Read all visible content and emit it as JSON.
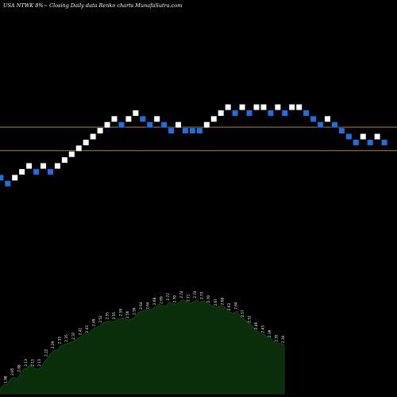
{
  "header": {
    "title": "USA NTWK 8%~  Closing Daily data  Renko  charts MunafaSutra.com"
  },
  "colors": {
    "background": "#000000",
    "up_brick": "#ffffff",
    "down_brick": "#1f6fe0",
    "support_line": "#b8860b",
    "volume_fill": "#0a2e0a",
    "volume_edge": "#1e5a1e"
  },
  "chart_data": [
    {
      "type": "renko",
      "bricks": [
        {
          "dir": "down",
          "level": 0
        },
        {
          "dir": "down",
          "level": -1
        },
        {
          "dir": "up",
          "level": 0
        },
        {
          "dir": "up",
          "level": 1
        },
        {
          "dir": "up",
          "level": 2
        },
        {
          "dir": "down",
          "level": 1
        },
        {
          "dir": "up",
          "level": 2
        },
        {
          "dir": "down",
          "level": 1
        },
        {
          "dir": "up",
          "level": 2
        },
        {
          "dir": "up",
          "level": 3
        },
        {
          "dir": "up",
          "level": 4
        },
        {
          "dir": "up",
          "level": 5
        },
        {
          "dir": "up",
          "level": 6
        },
        {
          "dir": "up",
          "level": 7
        },
        {
          "dir": "up",
          "level": 8
        },
        {
          "dir": "up",
          "level": 9
        },
        {
          "dir": "up",
          "level": 10
        },
        {
          "dir": "down",
          "level": 9
        },
        {
          "dir": "up",
          "level": 10
        },
        {
          "dir": "up",
          "level": 11
        },
        {
          "dir": "down",
          "level": 10
        },
        {
          "dir": "down",
          "level": 9
        },
        {
          "dir": "up",
          "level": 10
        },
        {
          "dir": "down",
          "level": 9
        },
        {
          "dir": "down",
          "level": 8
        },
        {
          "dir": "up",
          "level": 9
        },
        {
          "dir": "down",
          "level": 8
        },
        {
          "dir": "down",
          "level": 8
        },
        {
          "dir": "down",
          "level": 8
        },
        {
          "dir": "up",
          "level": 9
        },
        {
          "dir": "up",
          "level": 10
        },
        {
          "dir": "up",
          "level": 11
        },
        {
          "dir": "up",
          "level": 12
        },
        {
          "dir": "down",
          "level": 11
        },
        {
          "dir": "up",
          "level": 12
        },
        {
          "dir": "down",
          "level": 11
        },
        {
          "dir": "up",
          "level": 12
        },
        {
          "dir": "up",
          "level": 12
        },
        {
          "dir": "down",
          "level": 11
        },
        {
          "dir": "up",
          "level": 12
        },
        {
          "dir": "down",
          "level": 11
        },
        {
          "dir": "up",
          "level": 12
        },
        {
          "dir": "up",
          "level": 12
        },
        {
          "dir": "down",
          "level": 11
        },
        {
          "dir": "down",
          "level": 10
        },
        {
          "dir": "down",
          "level": 9
        },
        {
          "dir": "up",
          "level": 10
        },
        {
          "dir": "down",
          "level": 9
        },
        {
          "dir": "down",
          "level": 8
        },
        {
          "dir": "down",
          "level": 7
        },
        {
          "dir": "down",
          "level": 6
        },
        {
          "dir": "up",
          "level": 7
        },
        {
          "dir": "down",
          "level": 6
        },
        {
          "dir": "up",
          "level": 7
        },
        {
          "dir": "down",
          "level": 6
        }
      ],
      "horizontal_lines": [
        {
          "level": 8.6
        },
        {
          "level": 4.6
        }
      ]
    },
    {
      "type": "area",
      "values": [
        1.94,
        1.98,
        1.98,
        2.03,
        2.05,
        2.03,
        2.08,
        2.12,
        2.13,
        2.16,
        2.13,
        2.12,
        2.13,
        2.18,
        2.22,
        2.26,
        2.29,
        2.29,
        2.33,
        2.34,
        2.35,
        2.36,
        2.37,
        2.4,
        2.41,
        2.44,
        2.43,
        2.47,
        2.49,
        2.5,
        2.52,
        2.54,
        2.55,
        2.54,
        2.55,
        2.57,
        2.58,
        2.57,
        2.56,
        2.57,
        2.59,
        2.63,
        2.64,
        2.65,
        2.64,
        2.66,
        2.68,
        2.7,
        2.69,
        2.68,
        2.72,
        2.71,
        2.7,
        2.72,
        2.74,
        2.73,
        2.71,
        2.72,
        2.74,
        2.72,
        2.73,
        2.72,
        2.7,
        2.68,
        2.67,
        2.69,
        2.68,
        2.66,
        2.63,
        2.62,
        2.64,
        2.6,
        2.57,
        2.55,
        2.52,
        2.49,
        2.46,
        2.44,
        2.43,
        2.41,
        2.39,
        2.37,
        2.35,
        2.35,
        2.34
      ],
      "data_labels": [
        {
          "i": 0,
          "text": "1.94"
        },
        {
          "i": 2,
          "text": "1.98"
        },
        {
          "i": 4,
          "text": "2.05"
        },
        {
          "i": 6,
          "text": "2.08"
        },
        {
          "i": 8,
          "text": "2.13"
        },
        {
          "i": 10,
          "text": "2.13"
        },
        {
          "i": 12,
          "text": "2.13"
        },
        {
          "i": 14,
          "text": "2.22"
        },
        {
          "i": 16,
          "text": "2.29"
        },
        {
          "i": 18,
          "text": "2.33"
        },
        {
          "i": 20,
          "text": "2.35"
        },
        {
          "i": 22,
          "text": "2.37"
        },
        {
          "i": 24,
          "text": "2.41"
        },
        {
          "i": 26,
          "text": "2.43"
        },
        {
          "i": 28,
          "text": "2.49"
        },
        {
          "i": 30,
          "text": "2.52"
        },
        {
          "i": 32,
          "text": "2.55"
        },
        {
          "i": 34,
          "text": "2.55"
        },
        {
          "i": 36,
          "text": "2.58"
        },
        {
          "i": 38,
          "text": "2.56"
        },
        {
          "i": 40,
          "text": "2.59"
        },
        {
          "i": 42,
          "text": "2.64"
        },
        {
          "i": 44,
          "text": "2.64"
        },
        {
          "i": 46,
          "text": "2.68"
        },
        {
          "i": 48,
          "text": "2.69"
        },
        {
          "i": 50,
          "text": "2.72"
        },
        {
          "i": 52,
          "text": "2.70"
        },
        {
          "i": 54,
          "text": "2.74"
        },
        {
          "i": 56,
          "text": "2.71"
        },
        {
          "i": 58,
          "text": "2.74"
        },
        {
          "i": 60,
          "text": "2.73"
        },
        {
          "i": 62,
          "text": "2.70"
        },
        {
          "i": 64,
          "text": "2.67"
        },
        {
          "i": 66,
          "text": "2.68"
        },
        {
          "i": 68,
          "text": "2.63"
        },
        {
          "i": 70,
          "text": "2.64"
        },
        {
          "i": 72,
          "text": "2.57"
        },
        {
          "i": 74,
          "text": "2.52"
        },
        {
          "i": 76,
          "text": "2.46"
        },
        {
          "i": 78,
          "text": "2.43"
        },
        {
          "i": 80,
          "text": "2.39"
        },
        {
          "i": 82,
          "text": "2.35"
        },
        {
          "i": 84,
          "text": "2.34"
        }
      ]
    }
  ]
}
